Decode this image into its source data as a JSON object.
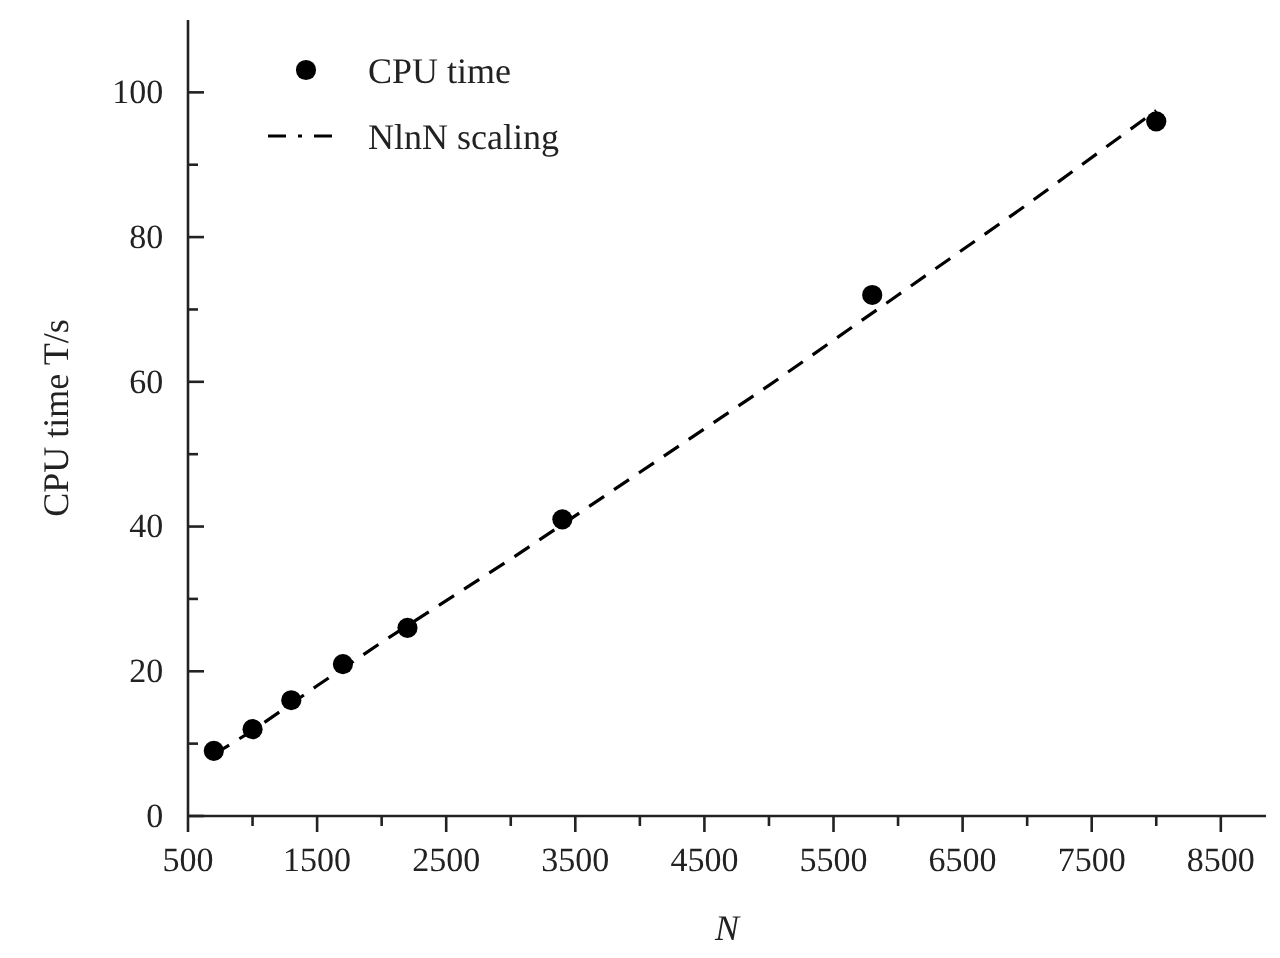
{
  "chart_data": {
    "type": "scatter",
    "xlabel": "N",
    "ylabel": "CPU time T/s",
    "xlim": [
      500,
      8850
    ],
    "ylim": [
      0,
      110
    ],
    "xticks": [
      500,
      {
        "value": 1000,
        "label": null
      },
      1500,
      {
        "value": 2000,
        "label": null
      },
      2500,
      {
        "value": 3000,
        "label": null
      },
      3500,
      {
        "value": 4000,
        "label": null
      },
      4500,
      {
        "value": 5000,
        "label": null
      },
      5500,
      {
        "value": 6000,
        "label": null
      },
      6500,
      {
        "value": 7000,
        "label": null
      },
      7500,
      {
        "value": 8000,
        "label": null
      },
      8500
    ],
    "yticks": [
      0,
      {
        "value": 10,
        "label": null
      },
      20,
      {
        "value": 30,
        "label": null
      },
      40,
      {
        "value": 50,
        "label": null
      },
      60,
      {
        "value": 70,
        "label": null
      },
      80,
      {
        "value": 90,
        "label": null
      },
      100
    ],
    "legend": "top left",
    "grid": false,
    "series": [
      {
        "name": "CPU time",
        "marker": "circle",
        "color": "#000000",
        "x": [
          700,
          1000,
          1300,
          1700,
          2200,
          3400,
          5800,
          8000
        ],
        "values": [
          9,
          12,
          16,
          21,
          26,
          41,
          72,
          96
        ]
      },
      {
        "name": "NlnN scaling",
        "type": "line",
        "line_style": "dashed",
        "marker": "none",
        "color": "#000000",
        "x": [
          700,
          1000,
          1500,
          2000,
          3000,
          4000,
          5000,
          6000,
          7000,
          8000
        ],
        "values": [
          8.5,
          11.8,
          18,
          24,
          35.5,
          47.5,
          59.5,
          72,
          84.5,
          97.5
        ]
      }
    ]
  }
}
